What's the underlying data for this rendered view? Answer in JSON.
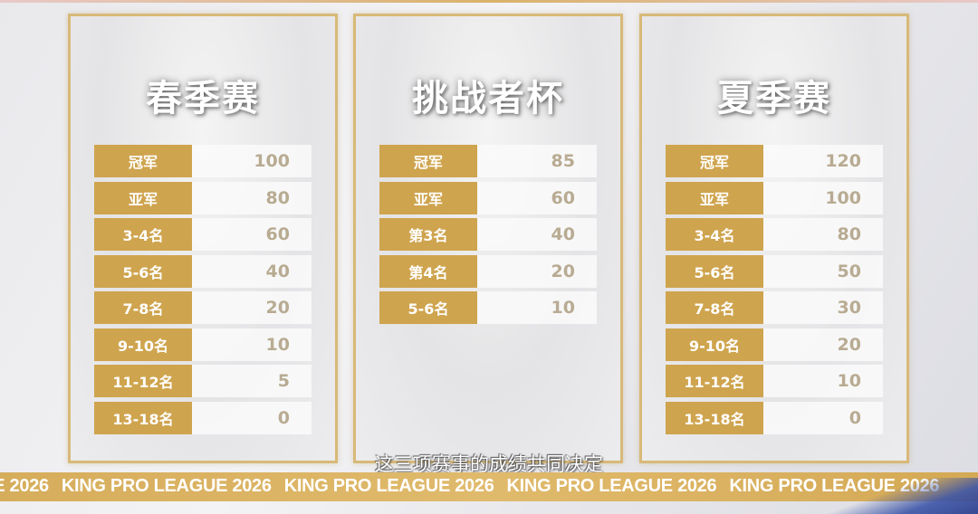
{
  "cards": [
    {
      "title": "春季赛",
      "rows": [
        {
          "label": "冠军",
          "value": "100"
        },
        {
          "label": "亚军",
          "value": "80"
        },
        {
          "label": "3-4名",
          "value": "60"
        },
        {
          "label": "5-6名",
          "value": "40"
        },
        {
          "label": "7-8名",
          "value": "20"
        },
        {
          "label": "9-10名",
          "value": "10"
        },
        {
          "label": "11-12名",
          "value": "5"
        },
        {
          "label": "13-18名",
          "value": "0"
        }
      ]
    },
    {
      "title": "挑战者杯",
      "rows": [
        {
          "label": "冠军",
          "value": "85"
        },
        {
          "label": "亚军",
          "value": "60"
        },
        {
          "label": "第3名",
          "value": "40"
        },
        {
          "label": "第4名",
          "value": "20"
        },
        {
          "label": "5-6名",
          "value": "10"
        }
      ]
    },
    {
      "title": "夏季赛",
      "rows": [
        {
          "label": "冠军",
          "value": "120"
        },
        {
          "label": "亚军",
          "value": "100"
        },
        {
          "label": "3-4名",
          "value": "80"
        },
        {
          "label": "5-6名",
          "value": "50"
        },
        {
          "label": "7-8名",
          "value": "30"
        },
        {
          "label": "9-10名",
          "value": "20"
        },
        {
          "label": "11-12名",
          "value": "10"
        },
        {
          "label": "13-18名",
          "value": "0"
        }
      ]
    }
  ],
  "subtitle": "这三项赛事的成绩共同决定",
  "banner_text": "KING PRO LEAGUE 2026",
  "colors": {
    "gold": "#cfa44e",
    "value_text": "#b8ab92",
    "frame": "#d8b978"
  }
}
